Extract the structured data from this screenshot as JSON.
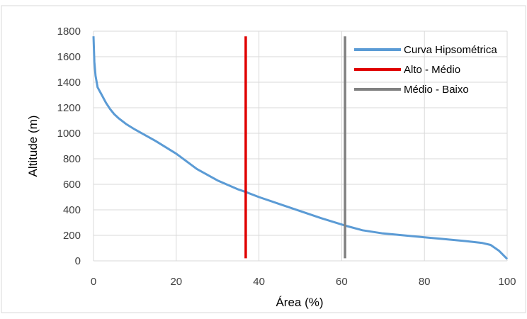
{
  "chart_data": {
    "type": "line",
    "title": "",
    "xlabel": "Área (%)",
    "ylabel": "Altitude (m)",
    "xlim": [
      0,
      100
    ],
    "ylim": [
      0,
      1800
    ],
    "x_ticks": [
      0,
      20,
      40,
      60,
      80,
      100
    ],
    "y_ticks": [
      0,
      200,
      400,
      600,
      800,
      1000,
      1200,
      1400,
      1600,
      1800
    ],
    "grid": "major both axes",
    "legend_position": "top-right",
    "series": [
      {
        "name": "Curva Hipsométrica",
        "color": "#5B9BD5",
        "points": [
          [
            0,
            1760
          ],
          [
            0.2,
            1560
          ],
          [
            0.5,
            1450
          ],
          [
            1,
            1360
          ],
          [
            2,
            1300
          ],
          [
            3,
            1240
          ],
          [
            4,
            1190
          ],
          [
            5,
            1150
          ],
          [
            6,
            1120
          ],
          [
            8,
            1070
          ],
          [
            10,
            1030
          ],
          [
            15,
            940
          ],
          [
            20,
            840
          ],
          [
            25,
            720
          ],
          [
            30,
            630
          ],
          [
            35,
            560
          ],
          [
            36.8,
            540
          ],
          [
            40,
            500
          ],
          [
            45,
            445
          ],
          [
            50,
            390
          ],
          [
            55,
            335
          ],
          [
            60,
            285
          ],
          [
            61,
            275
          ],
          [
            65,
            240
          ],
          [
            70,
            215
          ],
          [
            75,
            200
          ],
          [
            80,
            185
          ],
          [
            85,
            170
          ],
          [
            90,
            155
          ],
          [
            94,
            140
          ],
          [
            96,
            125
          ],
          [
            98,
            80
          ],
          [
            100,
            15
          ]
        ]
      },
      {
        "name": "Alto - Médio",
        "color": "#E00000",
        "points": [
          [
            36.8,
            20
          ],
          [
            36.8,
            1760
          ]
        ]
      },
      {
        "name": "Médio - Baixo",
        "color": "#808080",
        "points": [
          [
            60.8,
            20
          ],
          [
            60.8,
            1760
          ]
        ]
      }
    ]
  }
}
